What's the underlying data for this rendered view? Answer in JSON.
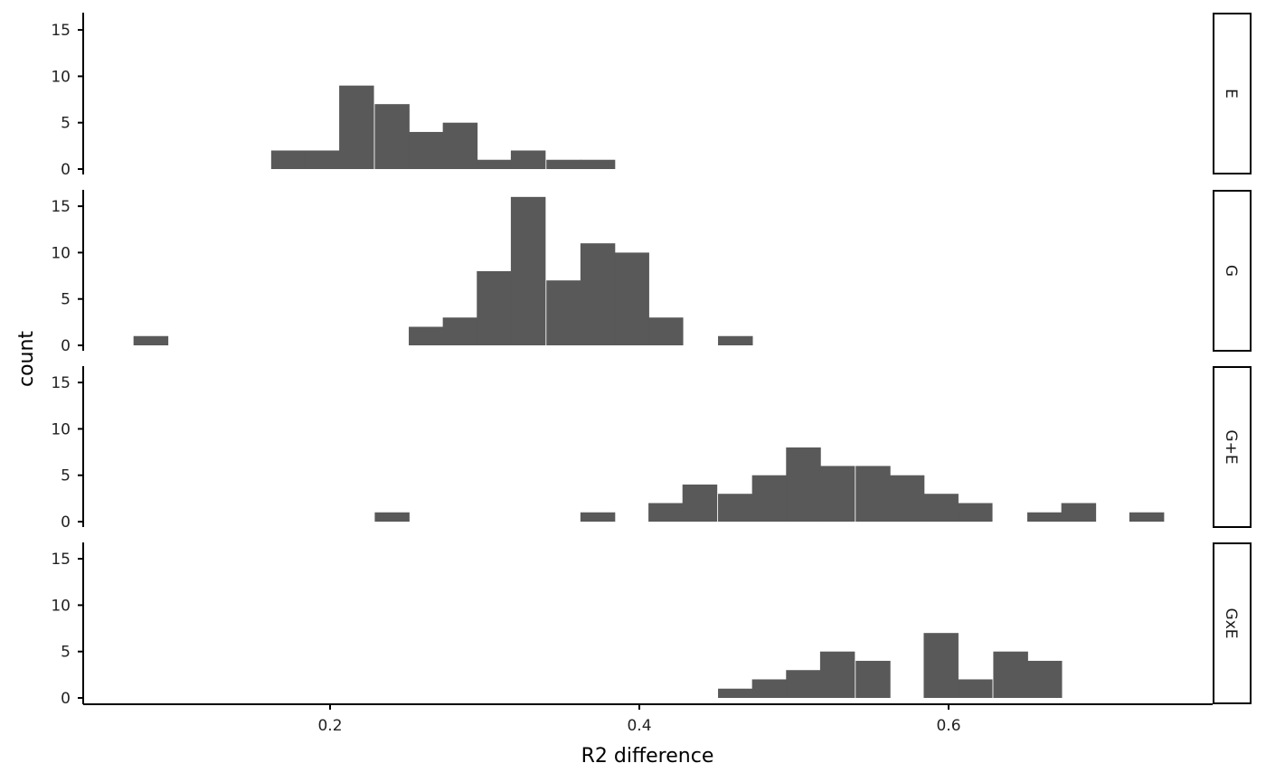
{
  "chart_data": {
    "type": "bar",
    "subtype": "faceted histogram",
    "xlabel": "R2 difference",
    "ylabel": "count",
    "bin_width": 0.0222,
    "xlim": [
      0.04,
      0.77
    ],
    "ylim": [
      0,
      16.5
    ],
    "x_ticks": [
      0.2,
      0.4,
      0.6
    ],
    "x_tick_labels": [
      "0.2",
      "0.4",
      "0.6"
    ],
    "y_ticks": [
      0,
      5,
      10,
      15
    ],
    "y_tick_labels": [
      "0",
      "5",
      "10",
      "15"
    ],
    "bar_color": "#595959",
    "grid": false,
    "facets": [
      {
        "name": "E",
        "bins": [
          {
            "x": 0.173,
            "count": 2
          },
          {
            "x": 0.195,
            "count": 2
          },
          {
            "x": 0.217,
            "count": 9
          },
          {
            "x": 0.24,
            "count": 7
          },
          {
            "x": 0.262,
            "count": 4
          },
          {
            "x": 0.284,
            "count": 5
          },
          {
            "x": 0.306,
            "count": 1
          },
          {
            "x": 0.328,
            "count": 2
          },
          {
            "x": 0.351,
            "count": 1
          },
          {
            "x": 0.373,
            "count": 1
          }
        ]
      },
      {
        "name": "G",
        "bins": [
          {
            "x": 0.084,
            "count": 1
          },
          {
            "x": 0.262,
            "count": 2
          },
          {
            "x": 0.284,
            "count": 3
          },
          {
            "x": 0.306,
            "count": 8
          },
          {
            "x": 0.328,
            "count": 16
          },
          {
            "x": 0.351,
            "count": 7
          },
          {
            "x": 0.373,
            "count": 11
          },
          {
            "x": 0.395,
            "count": 10
          },
          {
            "x": 0.417,
            "count": 3
          },
          {
            "x": 0.462,
            "count": 1
          }
        ]
      },
      {
        "name": "G+E",
        "bins": [
          {
            "x": 0.24,
            "count": 1
          },
          {
            "x": 0.373,
            "count": 1
          },
          {
            "x": 0.417,
            "count": 2
          },
          {
            "x": 0.439,
            "count": 4
          },
          {
            "x": 0.462,
            "count": 3
          },
          {
            "x": 0.484,
            "count": 5
          },
          {
            "x": 0.506,
            "count": 8
          },
          {
            "x": 0.528,
            "count": 6
          },
          {
            "x": 0.551,
            "count": 6
          },
          {
            "x": 0.573,
            "count": 5
          },
          {
            "x": 0.595,
            "count": 3
          },
          {
            "x": 0.617,
            "count": 2
          },
          {
            "x": 0.662,
            "count": 1
          },
          {
            "x": 0.684,
            "count": 2
          },
          {
            "x": 0.728,
            "count": 1
          }
        ]
      },
      {
        "name": "GxE",
        "bins": [
          {
            "x": 0.462,
            "count": 1
          },
          {
            "x": 0.484,
            "count": 2
          },
          {
            "x": 0.506,
            "count": 3
          },
          {
            "x": 0.528,
            "count": 5
          },
          {
            "x": 0.551,
            "count": 4
          },
          {
            "x": 0.595,
            "count": 7
          },
          {
            "x": 0.617,
            "count": 2
          },
          {
            "x": 0.64,
            "count": 5
          },
          {
            "x": 0.662,
            "count": 4
          }
        ]
      }
    ]
  }
}
